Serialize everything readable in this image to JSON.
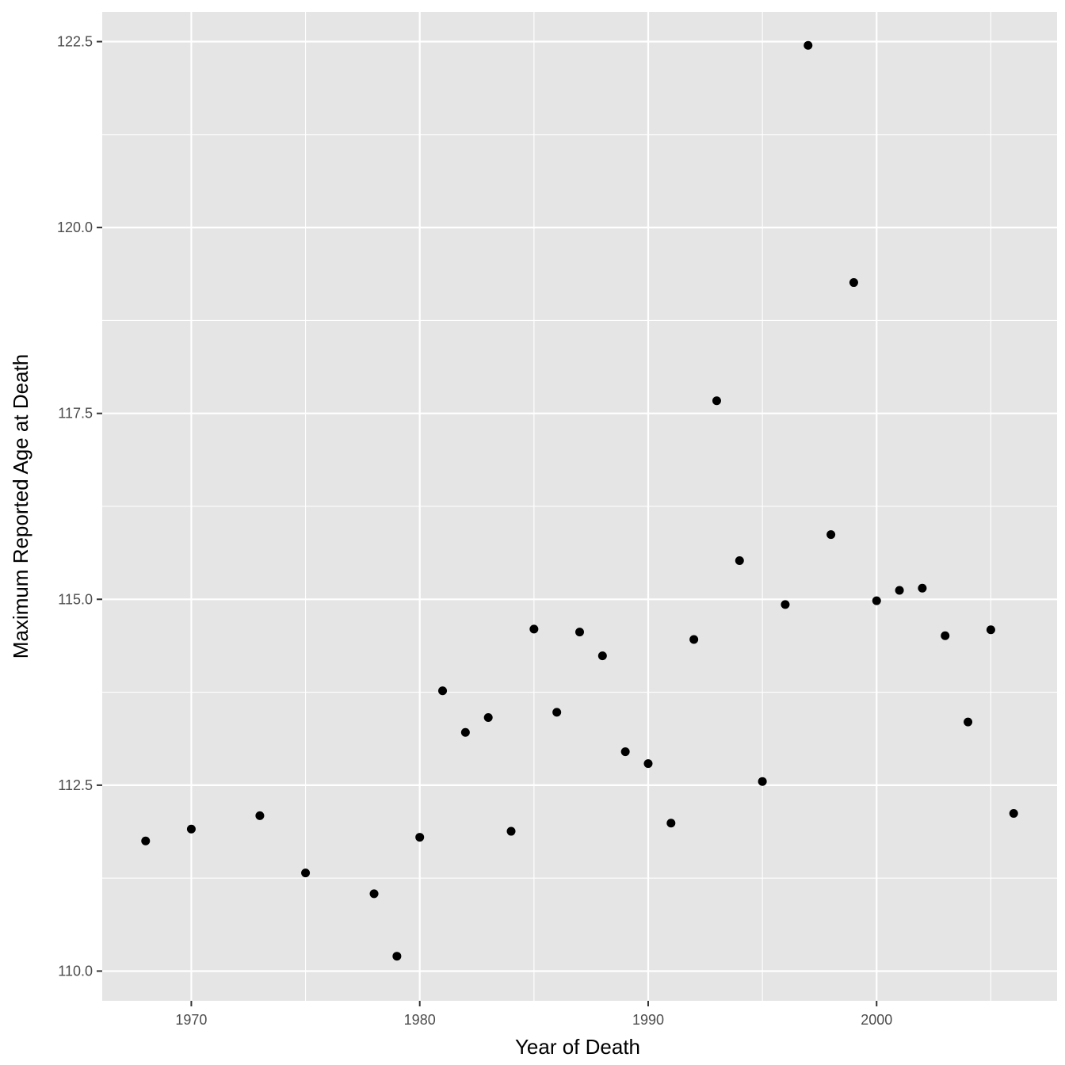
{
  "chart_data": {
    "type": "scatter",
    "title": "",
    "xlabel": "Year of Death",
    "ylabel": "Maximum Reported Age at Death",
    "xlim": [
      1966.1,
      2007.9
    ],
    "ylim": [
      109.6,
      122.9
    ],
    "x_ticks": [
      1970,
      1980,
      1990,
      2000
    ],
    "x_tick_labels": [
      "1970",
      "1980",
      "1990",
      "2000"
    ],
    "y_ticks": [
      110.0,
      112.5,
      115.0,
      117.5,
      120.0,
      122.5
    ],
    "y_tick_labels": [
      "110.0",
      "112.5",
      "115.0",
      "117.5",
      "120.0",
      "122.5"
    ],
    "grid": true,
    "legend": "none",
    "colors": {
      "panel": "#e5e5e5",
      "grid": "#ffffff",
      "point": "#000000"
    },
    "points": [
      {
        "x": 1968,
        "y": 111.75
      },
      {
        "x": 1970,
        "y": 111.91
      },
      {
        "x": 1973,
        "y": 112.09
      },
      {
        "x": 1975,
        "y": 111.32
      },
      {
        "x": 1978,
        "y": 111.04
      },
      {
        "x": 1979,
        "y": 110.2
      },
      {
        "x": 1980,
        "y": 111.8
      },
      {
        "x": 1981,
        "y": 113.77
      },
      {
        "x": 1982,
        "y": 113.21
      },
      {
        "x": 1983,
        "y": 113.41
      },
      {
        "x": 1984,
        "y": 111.88
      },
      {
        "x": 1985,
        "y": 114.6
      },
      {
        "x": 1986,
        "y": 113.48
      },
      {
        "x": 1987,
        "y": 114.56
      },
      {
        "x": 1988,
        "y": 114.24
      },
      {
        "x": 1989,
        "y": 112.95
      },
      {
        "x": 1990,
        "y": 112.79
      },
      {
        "x": 1991,
        "y": 111.99
      },
      {
        "x": 1992,
        "y": 114.46
      },
      {
        "x": 1993,
        "y": 117.67
      },
      {
        "x": 1994,
        "y": 115.52
      },
      {
        "x": 1995,
        "y": 112.55
      },
      {
        "x": 1996,
        "y": 114.93
      },
      {
        "x": 1997,
        "y": 122.45
      },
      {
        "x": 1998,
        "y": 115.87
      },
      {
        "x": 1999,
        "y": 119.26
      },
      {
        "x": 2000,
        "y": 114.98
      },
      {
        "x": 2001,
        "y": 115.12
      },
      {
        "x": 2002,
        "y": 115.15
      },
      {
        "x": 2003,
        "y": 114.51
      },
      {
        "x": 2004,
        "y": 113.35
      },
      {
        "x": 2005,
        "y": 114.59
      },
      {
        "x": 2006,
        "y": 112.12
      }
    ]
  }
}
